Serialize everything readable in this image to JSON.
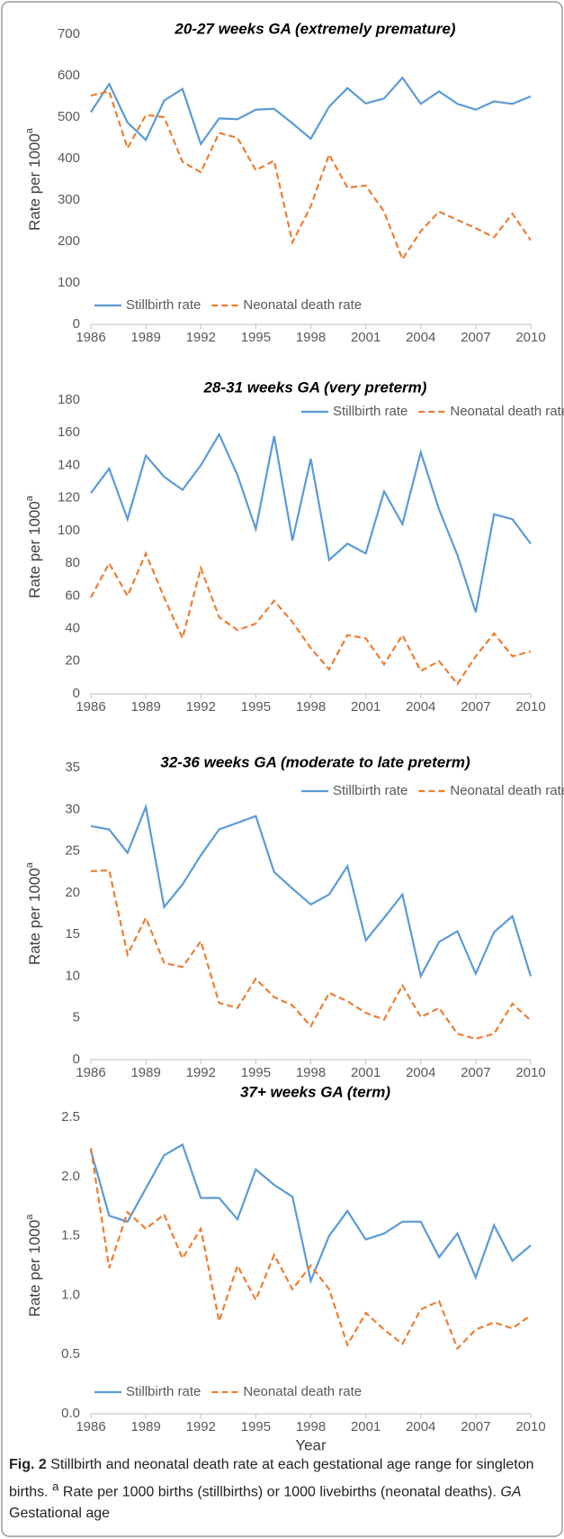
{
  "chart_data": [
    {
      "type": "line",
      "title": "20-27 weeks GA (extremely premature)",
      "ylabel": "Rate per 1000",
      "ylabel_superscript": "a",
      "x": [
        1986,
        1987,
        1988,
        1989,
        1990,
        1991,
        1992,
        1993,
        1994,
        1995,
        1996,
        1997,
        1998,
        1999,
        2000,
        2001,
        2002,
        2003,
        2004,
        2005,
        2006,
        2007,
        2008,
        2009,
        2010
      ],
      "xlim": [
        1986,
        2010
      ],
      "xticks": [
        1986,
        1989,
        1992,
        1995,
        1998,
        2001,
        2004,
        2007,
        2010
      ],
      "ylim": [
        0,
        700
      ],
      "yticks": [
        0,
        100,
        200,
        300,
        400,
        500,
        600,
        700
      ],
      "legend": "lower left",
      "series": [
        {
          "name": "Stillbirth rate",
          "color": "#5b9bd5",
          "style": "solid",
          "values": [
            512,
            580,
            487,
            445,
            540,
            568,
            435,
            497,
            495,
            518,
            520,
            485,
            448,
            525,
            570,
            533,
            545,
            595,
            532,
            562,
            532,
            518,
            538,
            532,
            550
          ]
        },
        {
          "name": "Neonatal death rate",
          "color": "#ed7d31",
          "style": "dashed",
          "values": [
            552,
            562,
            425,
            505,
            500,
            392,
            367,
            462,
            450,
            372,
            395,
            198,
            285,
            410,
            330,
            335,
            272,
            157,
            225,
            272,
            252,
            232,
            210,
            267,
            203
          ]
        }
      ]
    },
    {
      "type": "line",
      "title": "28-31 weeks GA (very preterm)",
      "ylabel": "Rate per 1000",
      "ylabel_superscript": "a",
      "x": [
        1986,
        1987,
        1988,
        1989,
        1990,
        1991,
        1992,
        1993,
        1994,
        1995,
        1996,
        1997,
        1998,
        1999,
        2000,
        2001,
        2002,
        2003,
        2004,
        2005,
        2006,
        2007,
        2008,
        2009,
        2010
      ],
      "xlim": [
        1986,
        2010
      ],
      "xticks": [
        1986,
        1989,
        1992,
        1995,
        1998,
        2001,
        2004,
        2007,
        2010
      ],
      "ylim": [
        0,
        180
      ],
      "yticks": [
        0,
        20,
        40,
        60,
        80,
        100,
        120,
        140,
        160,
        180
      ],
      "legend": "upper right",
      "series": [
        {
          "name": "Stillbirth rate",
          "color": "#5b9bd5",
          "style": "solid",
          "values": [
            123,
            138,
            107,
            146,
            133,
            125,
            140,
            159,
            134,
            101,
            158,
            94,
            144,
            82,
            92,
            86,
            124,
            104,
            148,
            113,
            85,
            50,
            110,
            107,
            92
          ]
        },
        {
          "name": "Neonatal death rate",
          "color": "#ed7d31",
          "style": "dashed",
          "values": [
            59,
            80,
            60,
            86,
            59,
            34,
            77,
            47,
            39,
            43,
            57,
            44,
            28,
            15,
            36,
            34,
            18,
            36,
            14,
            20,
            6,
            23,
            37,
            23,
            26
          ]
        }
      ]
    },
    {
      "type": "line",
      "title": "32-36 weeks GA (moderate to late preterm)",
      "ylabel": "Rate per 1000",
      "ylabel_superscript": "a",
      "x": [
        1986,
        1987,
        1988,
        1989,
        1990,
        1991,
        1992,
        1993,
        1994,
        1995,
        1996,
        1997,
        1998,
        1999,
        2000,
        2001,
        2002,
        2003,
        2004,
        2005,
        2006,
        2007,
        2008,
        2009,
        2010
      ],
      "xlim": [
        1986,
        2010
      ],
      "xticks": [
        1986,
        1989,
        1992,
        1995,
        1998,
        2001,
        2004,
        2007,
        2010
      ],
      "ylim": [
        0,
        35
      ],
      "yticks": [
        0,
        5,
        10,
        15,
        20,
        25,
        30,
        35
      ],
      "legend": "upper right",
      "series": [
        {
          "name": "Stillbirth rate",
          "color": "#5b9bd5",
          "style": "solid",
          "values": [
            28,
            27.6,
            24.8,
            30.3,
            18.3,
            21,
            24.5,
            27.6,
            28.4,
            29.2,
            22.5,
            20.5,
            18.6,
            19.8,
            23.2,
            14.3,
            17,
            19.8,
            10,
            14.1,
            15.4,
            10.3,
            15.3,
            17.2,
            10
          ]
        },
        {
          "name": "Neonatal death rate",
          "color": "#ed7d31",
          "style": "dashed",
          "values": [
            22.6,
            22.7,
            12.6,
            17,
            11.6,
            11.1,
            14.2,
            6.8,
            6.2,
            9.7,
            7.5,
            6.5,
            4,
            8,
            7,
            5.6,
            4.8,
            8.9,
            5.1,
            6.2,
            3.1,
            2.5,
            3.1,
            6.7,
            4.7
          ]
        }
      ]
    },
    {
      "type": "line",
      "title": "37+ weeks GA (term)",
      "ylabel": "Rate per 1000",
      "ylabel_superscript": "a",
      "xlabel": "Year",
      "x": [
        1986,
        1987,
        1988,
        1989,
        1990,
        1991,
        1992,
        1993,
        1994,
        1995,
        1996,
        1997,
        1998,
        1999,
        2000,
        2001,
        2002,
        2003,
        2004,
        2005,
        2006,
        2007,
        2008,
        2009,
        2010
      ],
      "xlim": [
        1986,
        2010
      ],
      "xticks": [
        1986,
        1989,
        1992,
        1995,
        1998,
        2001,
        2004,
        2007,
        2010
      ],
      "ylim": [
        0,
        2.5
      ],
      "yticks": [
        {
          "value": 0,
          "label": "0.0"
        },
        0.5,
        {
          "value": 1,
          "label": "1.0"
        },
        1.5,
        {
          "value": 2,
          "label": "2.0"
        },
        2.5
      ],
      "legend": "lower left",
      "series": [
        {
          "name": "Stillbirth rate",
          "color": "#5b9bd5",
          "style": "solid",
          "values": [
            2.22,
            1.67,
            1.62,
            1.9,
            2.18,
            2.27,
            1.82,
            1.82,
            1.64,
            2.06,
            1.93,
            1.83,
            1.12,
            1.5,
            1.71,
            1.47,
            1.52,
            1.62,
            1.62,
            1.32,
            1.52,
            1.15,
            1.59,
            1.29,
            1.42
          ]
        },
        {
          "name": "Neonatal death rate",
          "color": "#ed7d31",
          "style": "dashed",
          "values": [
            2.24,
            1.23,
            1.7,
            1.56,
            1.68,
            1.31,
            1.56,
            0.78,
            1.25,
            0.96,
            1.34,
            1.05,
            1.25,
            1.05,
            0.58,
            0.85,
            0.71,
            0.59,
            0.88,
            0.95,
            0.55,
            0.71,
            0.77,
            0.72,
            0.83
          ]
        }
      ]
    }
  ],
  "caption": {
    "label": "Fig. 2",
    "text": "Stillbirth and neonatal death rate at each gestational age range for singleton births.",
    "superscript": "a",
    "note": "Rate per 1000 births (stillbirths) or 1000 livebirths (neonatal deaths).",
    "abbr": "GA",
    "abbr_text": "Gestational age"
  }
}
